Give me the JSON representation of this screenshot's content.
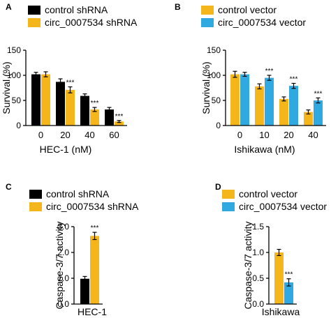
{
  "colors": {
    "black": "#000000",
    "orange": "#f5b61b",
    "blue": "#2fa9e0"
  },
  "chart_data": [
    {
      "panel": "A",
      "type": "bar",
      "xlabel": "HEC-1 (nM)",
      "ylabel": "Survival (%)",
      "ylim": [
        0,
        150
      ],
      "yticks": [
        0,
        50,
        100,
        150
      ],
      "categories": [
        "0",
        "20",
        "40",
        "60"
      ],
      "legend_position": "top-left",
      "series": [
        {
          "name": "control shRNA",
          "color": "#000000",
          "values": [
            102,
            87,
            59,
            32
          ],
          "errors": [
            4,
            6,
            4,
            4
          ]
        },
        {
          "name": "circ_0007534 shRNA",
          "color": "#f5b61b",
          "values": [
            102,
            71,
            32,
            8
          ],
          "errors": [
            5,
            6,
            4,
            2
          ]
        }
      ],
      "annotations": [
        "",
        "***",
        "***",
        "***"
      ],
      "annotated_series": 1
    },
    {
      "panel": "B",
      "type": "bar",
      "xlabel": "Ishikawa (nM)",
      "ylabel": "Survival (%)",
      "ylim": [
        0,
        150
      ],
      "yticks": [
        0,
        50,
        100,
        150
      ],
      "categories": [
        "0",
        "10",
        "20",
        "40"
      ],
      "legend_position": "top-left",
      "series": [
        {
          "name": "control vector",
          "color": "#f5b61b",
          "values": [
            102,
            78,
            53,
            27
          ],
          "errors": [
            6,
            5,
            4,
            4
          ]
        },
        {
          "name": "circ_0007534 vector",
          "color": "#2fa9e0",
          "values": [
            102,
            95,
            79,
            50
          ],
          "errors": [
            4,
            5,
            5,
            5
          ]
        }
      ],
      "annotations": [
        "",
        "***",
        "***",
        "***"
      ],
      "annotated_series": 1
    },
    {
      "panel": "C",
      "type": "bar",
      "xlabel": "HEC-1",
      "ylabel": "Caspase-3/7 activity",
      "ylim": [
        0,
        3.0
      ],
      "yticks": [
        0.0,
        1.0,
        2.0,
        3.0
      ],
      "ytick_labels": [
        "0.0",
        "1.0",
        "2.0",
        "3.0"
      ],
      "categories": [
        "HEC-1"
      ],
      "legend_position": "top-left",
      "series": [
        {
          "name": "control shRNA",
          "color": "#000000",
          "values": [
            0.98
          ],
          "errors": [
            0.09
          ]
        },
        {
          "name": "circ_0007534 shRNA",
          "color": "#f5b61b",
          "values": [
            2.64
          ],
          "errors": [
            0.14
          ]
        }
      ],
      "annotations": [
        "***"
      ],
      "annotated_series": 1
    },
    {
      "panel": "D",
      "type": "bar",
      "xlabel": "Ishikawa",
      "ylabel": "Caspase-3/7 activity",
      "ylim": [
        0,
        1.5
      ],
      "yticks": [
        0.0,
        0.5,
        1.0,
        1.5
      ],
      "ytick_labels": [
        "0.0",
        "0.5",
        "1.0",
        "1.5"
      ],
      "categories": [
        "Ishikawa"
      ],
      "legend_position": "top-left",
      "series": [
        {
          "name": "control vector",
          "color": "#f5b61b",
          "values": [
            1.0
          ],
          "errors": [
            0.06
          ]
        },
        {
          "name": "circ_0007534 vector",
          "color": "#2fa9e0",
          "values": [
            0.42
          ],
          "errors": [
            0.07
          ]
        }
      ],
      "annotations": [
        "***"
      ],
      "annotated_series": 1
    }
  ]
}
